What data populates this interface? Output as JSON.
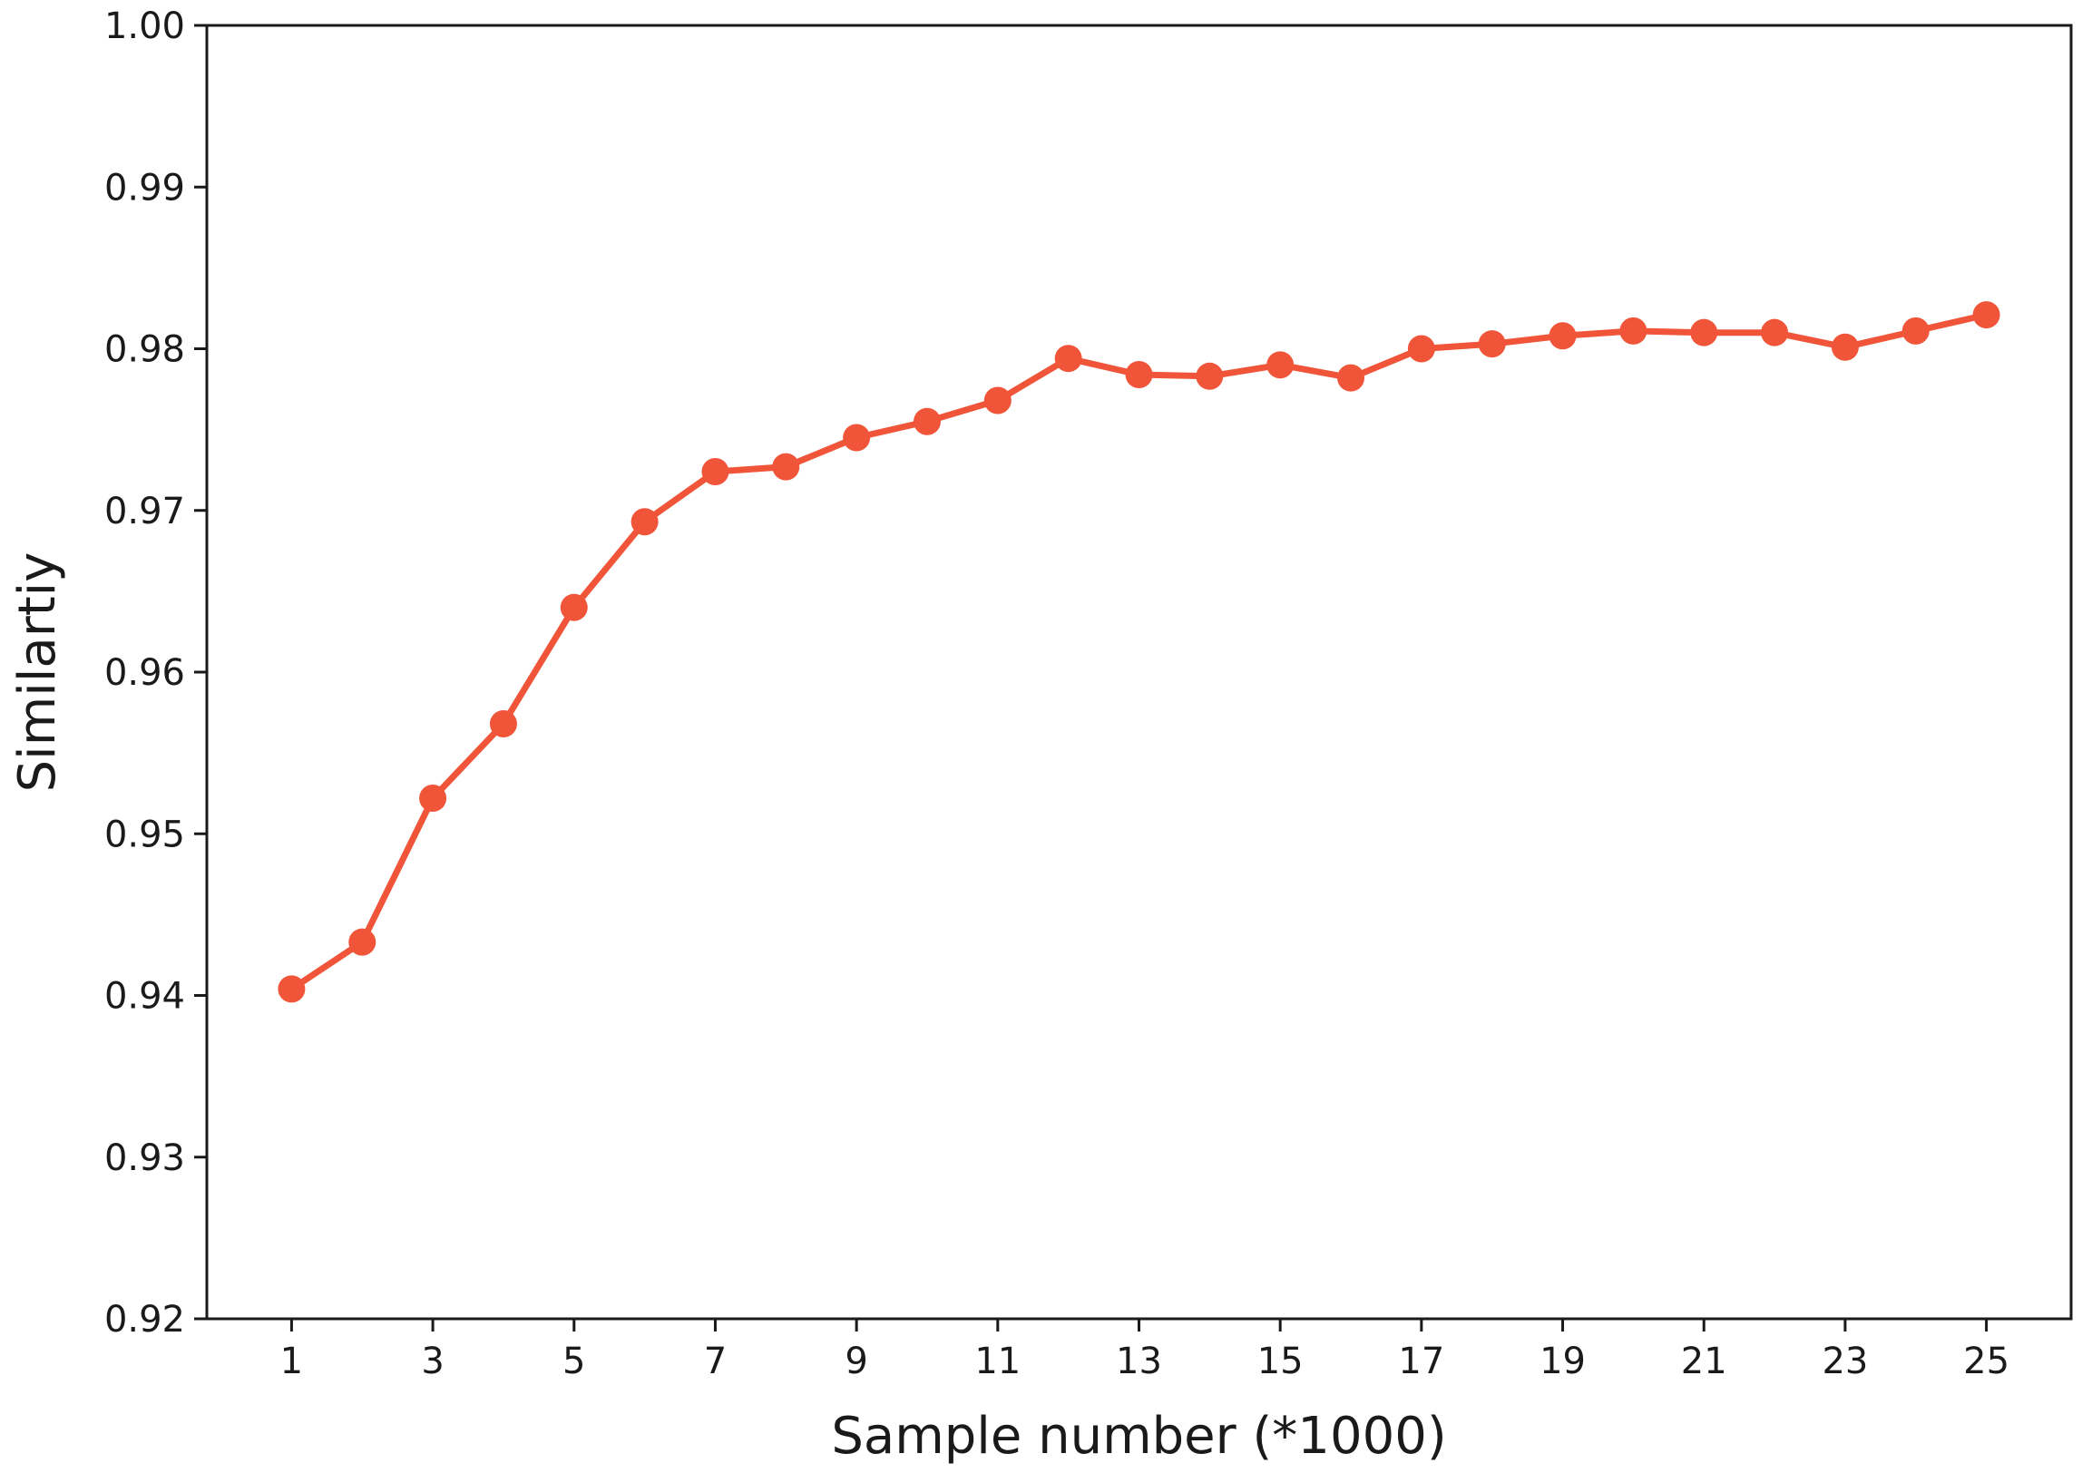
{
  "chart_data": {
    "type": "line",
    "title": "",
    "xlabel": "Sample number (*1000)",
    "ylabel": "Similartiy",
    "xlim": [
      -0.2,
      26.2
    ],
    "ylim": [
      0.92,
      1.0
    ],
    "xticks": [
      "1",
      "3",
      "5",
      "7",
      "9",
      "11",
      "13",
      "15",
      "17",
      "19",
      "21",
      "23",
      "25"
    ],
    "yticks": [
      "0.92",
      "0.93",
      "0.94",
      "0.95",
      "0.96",
      "0.97",
      "0.98",
      "0.99",
      "1.00"
    ],
    "grid": false,
    "legend": "none",
    "x": [
      1,
      2,
      3,
      4,
      5,
      6,
      7,
      8,
      9,
      10,
      11,
      12,
      13,
      14,
      15,
      16,
      17,
      18,
      19,
      20,
      21,
      22,
      23,
      24,
      25
    ],
    "series": [
      {
        "color": "#f0553a",
        "marker": "circle",
        "values": [
          0.9404,
          0.9433,
          0.9522,
          0.9568,
          0.964,
          0.9693,
          0.9724,
          0.9727,
          0.9745,
          0.9755,
          0.9768,
          0.9794,
          0.9784,
          0.9783,
          0.979,
          0.9782,
          0.98,
          0.9803,
          0.9808,
          0.9811,
          0.981,
          0.981,
          0.9801,
          0.9811,
          0.9821
        ]
      }
    ]
  }
}
